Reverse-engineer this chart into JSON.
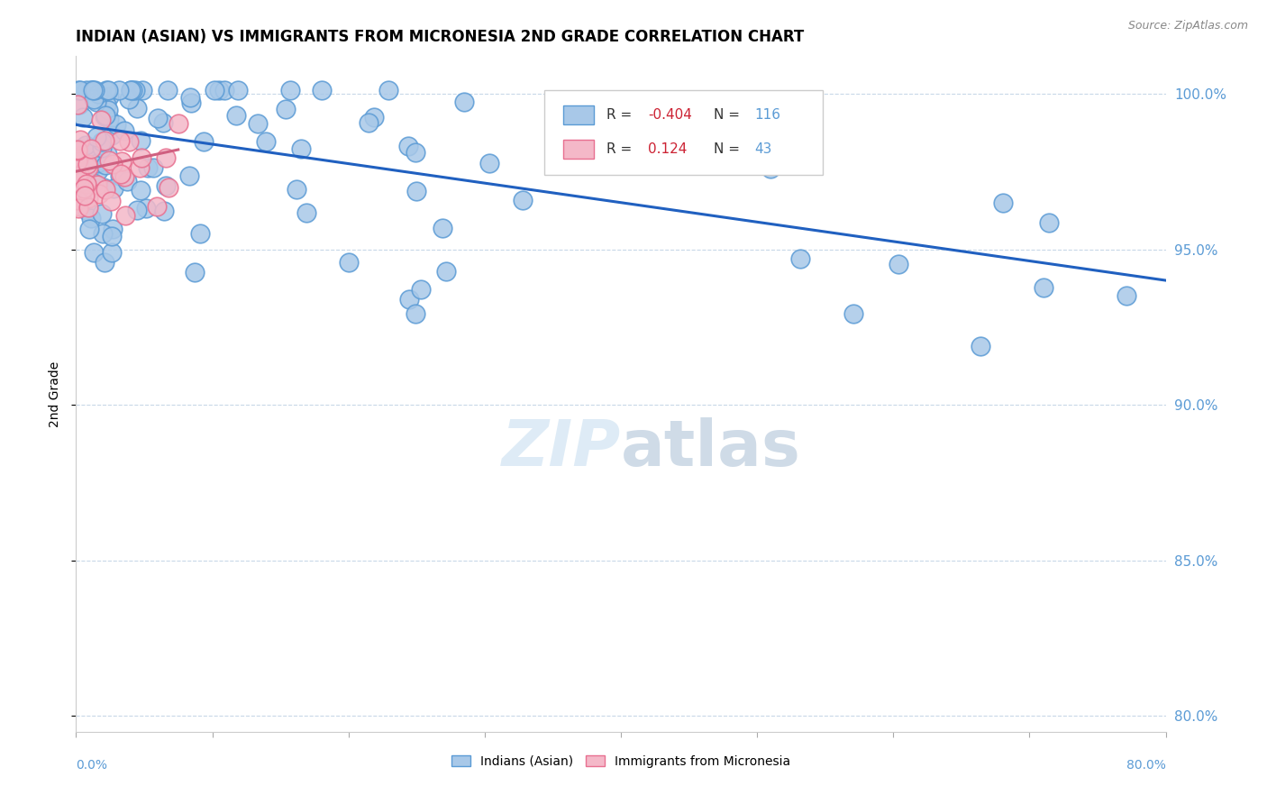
{
  "title": "INDIAN (ASIAN) VS IMMIGRANTS FROM MICRONESIA 2ND GRADE CORRELATION CHART",
  "source": "Source: ZipAtlas.com",
  "ylabel": "2nd Grade",
  "xmin": 0.0,
  "xmax": 0.8,
  "ymin": 0.795,
  "ymax": 1.012,
  "yticks": [
    0.8,
    0.85,
    0.9,
    0.95,
    1.0
  ],
  "ytick_labels": [
    "80.0%",
    "85.0%",
    "90.0%",
    "95.0%",
    "100.0%"
  ],
  "blue_color": "#a8c8e8",
  "blue_edge": "#5b9bd5",
  "pink_color": "#f4b8c8",
  "pink_edge": "#e87090",
  "trend_blue": "#2060c0",
  "trend_pink": "#d06080",
  "dashed_line_y": 1.0,
  "blue_trend_x0": 0.0,
  "blue_trend_x1": 0.8,
  "blue_trend_y0": 0.99,
  "blue_trend_y1": 0.94,
  "pink_trend_x0": 0.0,
  "pink_trend_x1": 0.075,
  "pink_trend_y0": 0.975,
  "pink_trend_y1": 0.982,
  "watermark_color": "#c8dff0",
  "ytick_color": "#5b9bd5",
  "xtick_label_color": "#5b9bd5"
}
